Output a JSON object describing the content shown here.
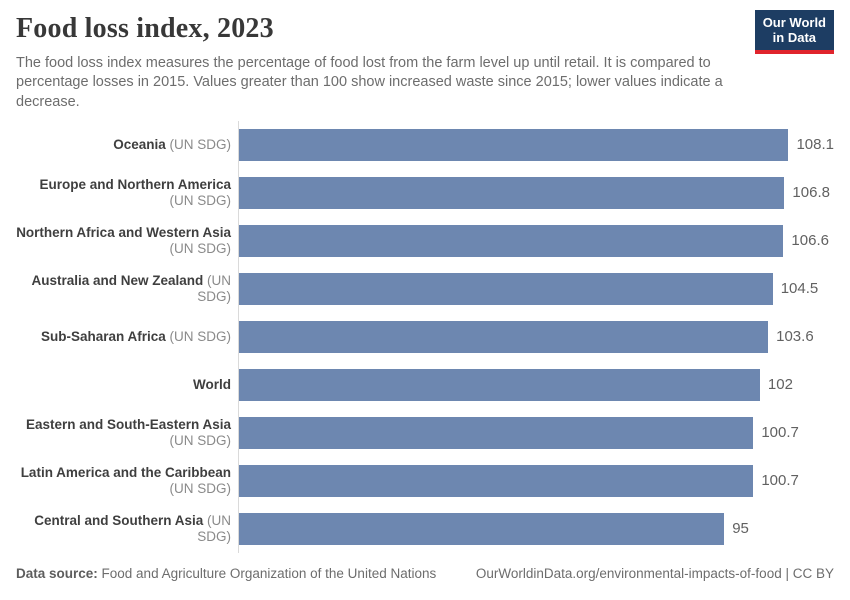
{
  "header": {
    "title": "Food loss index, 2023",
    "subtitle": "The food loss index measures the percentage of food lost from the farm level up until retail. It is compared to percentage losses in 2015. Values greater than 100 show increased waste since 2015; lower values indicate a decrease.",
    "logo": {
      "line1": "Our World",
      "line2": "in Data"
    }
  },
  "chart_data": {
    "type": "bar",
    "orientation": "horizontal",
    "title": "Food loss index, 2023",
    "categories": [
      "Oceania (UN SDG)",
      "Europe and Northern America (UN SDG)",
      "Northern Africa and Western Asia (UN SDG)",
      "Australia and New Zealand (UN SDG)",
      "Sub-Saharan Africa (UN SDG)",
      "World",
      "Eastern and South-Eastern Asia (UN SDG)",
      "Latin America and the Caribbean (UN SDG)",
      "Central and Southern Asia (UN SDG)"
    ],
    "values": [
      108.1,
      106.8,
      106.6,
      104.5,
      103.6,
      102,
      100.7,
      100.7,
      95
    ],
    "value_labels": [
      "108.1",
      "106.8",
      "106.6",
      "104.5",
      "103.6",
      "102",
      "100.7",
      "100.7",
      "95"
    ],
    "bars": [
      {
        "name": "Oceania",
        "qualifier": "(UN SDG)",
        "two_line": false
      },
      {
        "name": "Europe and Northern America",
        "qualifier": "(UN SDG)",
        "two_line": true
      },
      {
        "name": "Northern Africa and Western Asia",
        "qualifier": "(UN SDG)",
        "two_line": true
      },
      {
        "name": "Australia and New Zealand",
        "qualifier": "(UN SDG)",
        "two_line": false
      },
      {
        "name": "Sub-Saharan Africa",
        "qualifier": "(UN SDG)",
        "two_line": false
      },
      {
        "name": "World",
        "qualifier": "",
        "two_line": false
      },
      {
        "name": "Eastern and South-Eastern Asia",
        "qualifier": "(UN SDG)",
        "two_line": true
      },
      {
        "name": "Latin America and the Caribbean",
        "qualifier": "(UN SDG)",
        "two_line": true
      },
      {
        "name": "Central and Southern Asia",
        "qualifier": "(UN SDG)",
        "two_line": false
      }
    ],
    "xlim": [
      0,
      116.5
    ],
    "grid": false,
    "legend": false,
    "bar_color": "#6d87b0"
  },
  "footer": {
    "source_label": "Data source:",
    "source_text": " Food and Agriculture Organization of the United Nations",
    "link_text": "OurWorldinData.org/environmental-impacts-of-food",
    "license_separator": " | ",
    "license": "CC BY"
  },
  "colors": {
    "bar": "#6d87b0",
    "logo_navy": "#1d3d63",
    "logo_red": "#e0242c",
    "axis": "#dadada",
    "title_text": "#383838",
    "subtitle_text": "#6d6d6d"
  }
}
